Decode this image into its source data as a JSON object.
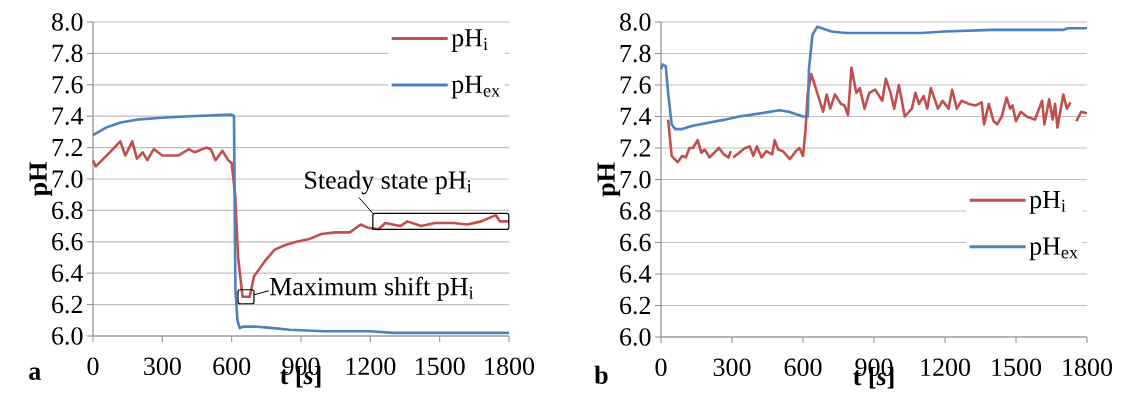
{
  "chart_data": [
    {
      "type": "line",
      "xlabel": "t [*s*]",
      "ylabel": "pH",
      "xlim": [
        0,
        1800
      ],
      "ylim": [
        6.0,
        8.0
      ],
      "xticks": [
        0,
        300,
        600,
        900,
        1200,
        1500,
        1800
      ],
      "yticks": [
        {
          "value": 6.0,
          "label": "6.0"
        },
        {
          "value": 6.2,
          "label": "6.2"
        },
        {
          "value": 6.4,
          "label": "6.4"
        },
        {
          "value": 6.6,
          "label": "6.6"
        },
        {
          "value": 6.8,
          "label": "6.8"
        },
        {
          "value": 7.0,
          "label": "7.0"
        },
        {
          "value": 7.2,
          "label": "7.2"
        },
        {
          "value": 7.4,
          "label": "7.4"
        },
        {
          "value": 7.6,
          "label": "7.6"
        },
        {
          "value": 7.8,
          "label": "7.8"
        },
        {
          "value": 8.0,
          "label": "8.0"
        }
      ],
      "grid": "y",
      "legend": "top right",
      "marker": "none",
      "line_style": "solid",
      "series": [
        {
          "name": "pH$_{i}$",
          "color": "#c0504d",
          "x": [
            0,
            12,
            60,
            118,
            140,
            170,
            190,
            215,
            235,
            263,
            300,
            370,
            415,
            440,
            490,
            510,
            530,
            560,
            585,
            600,
            615,
            628,
            647,
            678,
            697,
            740,
            786,
            833,
            880,
            940,
            988,
            1050,
            1111,
            1158,
            1189,
            1235,
            1265,
            1330,
            1360,
            1420,
            1480,
            1560,
            1620,
            1680,
            1743,
            1760,
            1800
          ],
          "values": [
            7.12,
            7.08,
            7.15,
            7.24,
            7.15,
            7.24,
            7.13,
            7.17,
            7.12,
            7.19,
            7.15,
            7.15,
            7.19,
            7.17,
            7.2,
            7.19,
            7.12,
            7.18,
            7.12,
            7.1,
            6.9,
            6.5,
            6.25,
            6.25,
            6.38,
            6.47,
            6.55,
            6.58,
            6.6,
            6.62,
            6.65,
            6.66,
            6.66,
            6.71,
            6.69,
            6.68,
            6.72,
            6.7,
            6.73,
            6.7,
            6.72,
            6.72,
            6.71,
            6.73,
            6.77,
            6.73,
            6.73
          ]
        },
        {
          "name": "pH$_{ex}$",
          "color": "#4f81bd",
          "x": [
            0,
            60,
            120,
            200,
            300,
            420,
            600,
            610,
            616,
            625,
            635,
            650,
            700,
            780,
            850,
            1000,
            1200,
            1300,
            1800
          ],
          "values": [
            7.28,
            7.33,
            7.36,
            7.38,
            7.39,
            7.4,
            7.41,
            7.4,
            6.3,
            6.1,
            6.05,
            6.06,
            6.06,
            6.05,
            6.04,
            6.03,
            6.03,
            6.02,
            6.02
          ]
        }
      ],
      "annotations": [
        "a",
        {
          "text": "Steady state pH$_{i}$",
          "x": 1505,
          "y": 6.73
        },
        {
          "text": "Maximum shift pH$_{i}$",
          "x": 662,
          "y": 6.25
        }
      ]
    },
    {
      "type": "line",
      "xlabel": "t [*s*]",
      "ylabel": "pH",
      "xlim": [
        0,
        1800
      ],
      "ylim": [
        6.0,
        8.0
      ],
      "xticks": [
        0,
        300,
        600,
        900,
        1200,
        1500,
        1800
      ],
      "yticks": [
        {
          "value": 6.0,
          "label": "6.0"
        },
        {
          "value": 6.2,
          "label": "6.2"
        },
        {
          "value": 6.4,
          "label": "6.4"
        },
        {
          "value": 6.6,
          "label": "6.6"
        },
        {
          "value": 6.8,
          "label": "6.8"
        },
        {
          "value": 7.0,
          "label": "7.0"
        },
        {
          "value": 7.2,
          "label": "7.2"
        },
        {
          "value": 7.4,
          "label": "7.4"
        },
        {
          "value": 7.6,
          "label": "7.6"
        },
        {
          "value": 7.8,
          "label": "7.8"
        },
        {
          "value": 8.0,
          "label": "8.0"
        }
      ],
      "grid": "y",
      "legend": "right",
      "marker": "none",
      "line_style": "solid",
      "series": [
        {
          "name": "pH$_{i}$",
          "color": "#c0504d",
          "x": [
            30,
            45,
            70,
            90,
            105,
            120,
            135,
            155,
            170,
            185,
            205,
            225,
            245,
            265,
            285,
            295,
            300,
            305,
            330,
            355,
            375,
            390,
            405,
            425,
            445,
            470,
            480,
            495,
            515,
            545,
            570,
            585,
            600,
            610,
            620,
            635,
            660,
            685,
            700,
            715,
            735,
            760,
            775,
            790,
            805,
            825,
            840,
            860,
            880,
            905,
            935,
            950,
            970,
            985,
            1005,
            1030,
            1060,
            1075,
            1090,
            1110,
            1125,
            1140,
            1170,
            1190,
            1215,
            1230,
            1250,
            1270,
            1300,
            1330,
            1355,
            1365,
            1385,
            1405,
            1420,
            1440,
            1460,
            1475,
            1485,
            1500,
            1520,
            1545,
            1580,
            1610,
            1620,
            1640,
            1655,
            1665,
            1675,
            1700,
            1715,
            1730,
            1742,
            1755,
            1775,
            1800
          ],
          "values": [
            7.38,
            7.15,
            7.11,
            7.15,
            7.14,
            7.2,
            7.2,
            7.25,
            7.17,
            7.19,
            7.14,
            7.17,
            7.2,
            7.16,
            7.14,
            7.18,
            null,
            7.14,
            7.17,
            7.2,
            7.21,
            7.15,
            7.21,
            7.14,
            7.18,
            7.16,
            7.25,
            7.19,
            7.18,
            7.13,
            7.18,
            7.2,
            7.15,
            7.3,
            7.55,
            7.67,
            7.55,
            7.43,
            7.54,
            7.45,
            7.54,
            7.48,
            7.47,
            7.41,
            7.71,
            7.55,
            7.58,
            7.45,
            7.55,
            7.57,
            7.5,
            7.64,
            7.55,
            7.45,
            7.6,
            7.4,
            7.45,
            7.55,
            7.48,
            7.53,
            7.45,
            7.58,
            7.45,
            7.5,
            7.45,
            7.57,
            7.45,
            7.5,
            7.48,
            7.47,
            7.49,
            7.35,
            7.48,
            7.37,
            7.35,
            7.4,
            7.52,
            7.45,
            7.47,
            7.37,
            7.43,
            7.4,
            7.38,
            7.5,
            7.35,
            7.51,
            7.38,
            7.48,
            7.33,
            7.54,
            7.45,
            7.49,
            null,
            7.37,
            7.43,
            7.42
          ]
        },
        {
          "name": "pH$_{ex}$",
          "color": "#4f81bd",
          "x": [
            0,
            6,
            20,
            30,
            45,
            60,
            90,
            130,
            200,
            270,
            330,
            420,
            500,
            540,
            600,
            620,
            625,
            640,
            660,
            680,
            720,
            780,
            1100,
            1200,
            1400,
            1700,
            1720,
            1800
          ],
          "values": [
            7.7,
            7.73,
            7.72,
            7.55,
            7.35,
            7.32,
            7.32,
            7.34,
            7.36,
            7.38,
            7.4,
            7.42,
            7.44,
            7.43,
            7.4,
            7.4,
            7.7,
            7.92,
            7.97,
            7.96,
            7.94,
            7.93,
            7.93,
            7.94,
            7.95,
            7.95,
            7.96,
            7.96
          ]
        }
      ],
      "annotations": [
        "b"
      ]
    }
  ]
}
